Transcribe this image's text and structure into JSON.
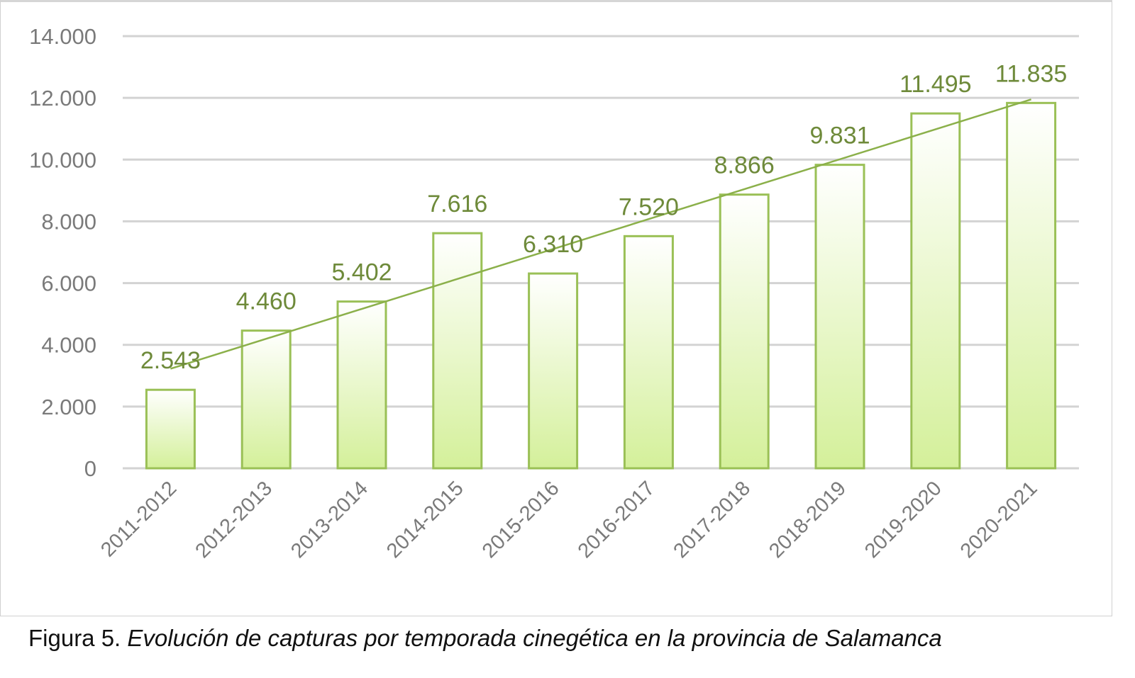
{
  "chart_data": {
    "type": "bar",
    "title": "",
    "xlabel": "",
    "ylabel": "",
    "categories": [
      "2011-2012",
      "2012-2013",
      "2013-2014",
      "2014-2015",
      "2015-2016",
      "2016-2017",
      "2017-2018",
      "2018-2019",
      "2019-2020",
      "2020-2021"
    ],
    "values": [
      2543,
      4460,
      5402,
      7616,
      6310,
      7520,
      8866,
      9831,
      11495,
      11835
    ],
    "data_labels": [
      "2.543",
      "4.460",
      "5.402",
      "7.616",
      "6.310",
      "7.520",
      "8.866",
      "9.831",
      "11.495",
      "11.835"
    ],
    "ylim": [
      0,
      14000
    ],
    "yticks": [
      0,
      2000,
      4000,
      6000,
      8000,
      10000,
      12000,
      14000
    ],
    "ytick_labels": [
      "0",
      "2.000",
      "4.000",
      "6.000",
      "8.000",
      "10.000",
      "12.000",
      "14.000"
    ],
    "grid": true,
    "legend": "none",
    "trendline": {
      "type": "linear",
      "color": "#8bb04a"
    },
    "colors": {
      "bar_fill_top": "#ffffff",
      "bar_fill_bottom": "#d4f09a",
      "bar_border": "#9ac056",
      "label": "#6e8a3a",
      "axis_text": "#7a7a7a",
      "grid": "#d3d3d3"
    }
  },
  "caption": {
    "prefix": "Figura 5. ",
    "text": "Evolución de capturas por temporada cinegética en la provincia de Salamanca"
  }
}
